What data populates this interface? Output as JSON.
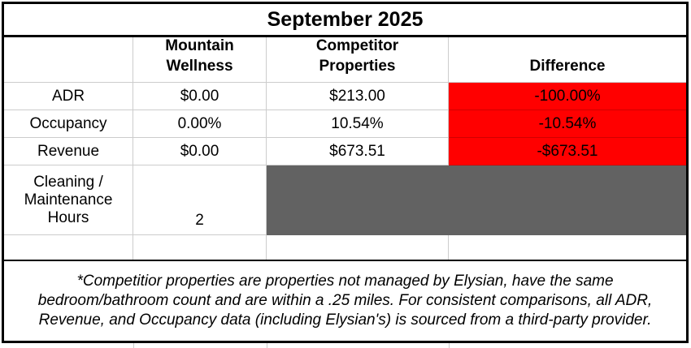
{
  "title": "September 2025",
  "columns": {
    "row_header": "",
    "mountain_wellness": "Mountain\nWellness",
    "competitor_properties": "Competitor\nProperties",
    "difference": "Difference"
  },
  "rows": {
    "adr": {
      "label": "ADR",
      "mountain_wellness": "$0.00",
      "competitor_properties": "$213.00",
      "difference": "-100.00%"
    },
    "occupancy": {
      "label": "Occupancy",
      "mountain_wellness": "0.00%",
      "competitor_properties": "10.54%",
      "difference": "-10.54%"
    },
    "revenue": {
      "label": "Revenue",
      "mountain_wellness": "$0.00",
      "competitor_properties": "$673.51",
      "difference": "-$673.51"
    },
    "cleaning_maintenance_hours": {
      "label": "Cleaning /\nMaintenance\nHours",
      "mountain_wellness": "2"
    }
  },
  "footnote": "*Competitior properties are properties not managed by Elysian, have the same bedroom/bathroom count and are within a .25 miles. For consistent comparisons, all ADR, Revenue, and Occupancy data (including Elysian's) is sourced from a third-party provider.",
  "colors": {
    "negative_bg": "#ff0000",
    "na_bg": "#626262",
    "gridline": "#cccccc",
    "border": "#000000"
  }
}
